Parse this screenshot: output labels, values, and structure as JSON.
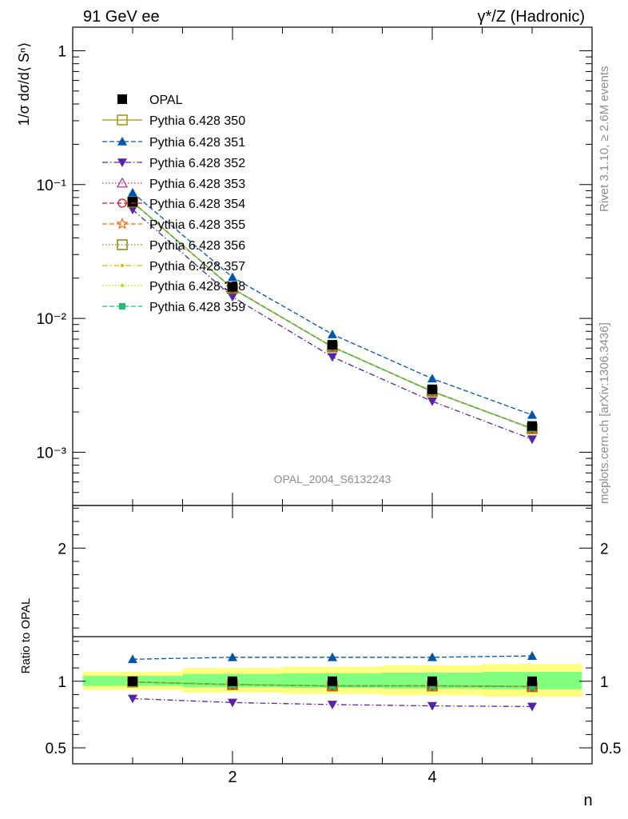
{
  "header": {
    "left_title": "91 GeV ee",
    "right_title": "γ*/Z (Hadronic)"
  },
  "side_text": {
    "rivet": "Rivet 3.1.10, ≥ 2.6M events",
    "mcplots": "mcplots.cern.ch [arXiv:1306.3436]"
  },
  "analysis_label": "OPAL_2004_S6132243",
  "chart_data": [
    {
      "type": "line",
      "panel": "main",
      "ylabel": "1/σ dσ/d⟨ Sⁿ⟩",
      "yscale": "log",
      "ylim": [
        0.0004,
        1.5
      ],
      "xlim": [
        0.4,
        5.6
      ],
      "y_tick_labels": [
        "1",
        "10⁻¹",
        "10⁻²",
        "10⁻³"
      ],
      "x": [
        1,
        2,
        3,
        4,
        5
      ],
      "series": [
        {
          "name": "OPAL",
          "color": "#000000",
          "marker": "filled-square",
          "line": "none",
          "values": [
            0.0745,
            0.0172,
            0.00635,
            0.00295,
            0.00157
          ]
        },
        {
          "name": "Pythia 6.428 350",
          "color": "#999900",
          "marker": "open-square",
          "line": "solid",
          "values": [
            0.074,
            0.0167,
            0.00612,
            0.00284,
            0.0015
          ]
        },
        {
          "name": "Pythia 6.428 351",
          "color": "#0055aa",
          "marker": "filled-triangle-up",
          "line": "dashed",
          "values": [
            0.087,
            0.0203,
            0.0076,
            0.00355,
            0.0019
          ]
        },
        {
          "name": "Pythia 6.428 352",
          "color": "#5522aa",
          "marker": "filled-triangle-down",
          "line": "dashdot",
          "values": [
            0.065,
            0.0145,
            0.00515,
            0.0024,
            0.00125
          ]
        },
        {
          "name": "Pythia 6.428 353",
          "color": "#bb2277",
          "marker": "open-triangle-up",
          "line": "dotted",
          "values": [
            0.0742,
            0.0168,
            0.00615,
            0.00286,
            0.00151
          ]
        },
        {
          "name": "Pythia 6.428 354",
          "color": "#dd1133",
          "marker": "open-circle",
          "line": "dashed",
          "values": [
            0.0741,
            0.0167,
            0.00613,
            0.00285,
            0.0015
          ]
        },
        {
          "name": "Pythia 6.428 355",
          "color": "#ff6600",
          "marker": "open-star",
          "line": "dashed",
          "values": [
            0.0742,
            0.0168,
            0.00614,
            0.00285,
            0.0015
          ]
        },
        {
          "name": "Pythia 6.428 356",
          "color": "#888800",
          "marker": "open-square",
          "line": "dotted",
          "values": [
            0.074,
            0.0167,
            0.00612,
            0.00284,
            0.0015
          ]
        },
        {
          "name": "Pythia 6.428 357",
          "color": "#ddbb00",
          "marker": "small-dot",
          "line": "dashdot",
          "values": [
            0.0741,
            0.0167,
            0.00613,
            0.00285,
            0.0015
          ]
        },
        {
          "name": "Pythia 6.428 358",
          "color": "#bbdd00",
          "marker": "small-dot",
          "line": "dotted",
          "values": [
            0.0741,
            0.0167,
            0.00613,
            0.00285,
            0.0015
          ]
        },
        {
          "name": "Pythia 6.428 359",
          "color": "#22bb77",
          "marker": "filled-square-small",
          "line": "dashed",
          "values": [
            0.074,
            0.0167,
            0.00612,
            0.00284,
            0.0015
          ]
        }
      ]
    },
    {
      "type": "line",
      "panel": "ratio",
      "ylabel": "Ratio to OPAL",
      "xlabel": "n",
      "ylim": [
        0.38,
        2.32
      ],
      "y_tick_labels": [
        "2",
        "1",
        "0.5"
      ],
      "x_tick_labels": [
        "2",
        "4"
      ],
      "x": [
        1,
        2,
        3,
        4,
        5
      ],
      "bands": {
        "bins": [
          [
            0.5,
            1.5
          ],
          [
            1.5,
            2.5
          ],
          [
            2.5,
            3.5
          ],
          [
            3.5,
            4.5
          ],
          [
            4.5,
            5.5
          ]
        ],
        "inner": [
          [
            0.965,
            1.04
          ],
          [
            0.955,
            1.055
          ],
          [
            0.95,
            1.06
          ],
          [
            0.945,
            1.065
          ],
          [
            0.94,
            1.07
          ]
        ],
        "outer": [
          [
            0.935,
            1.07
          ],
          [
            0.915,
            1.1
          ],
          [
            0.905,
            1.11
          ],
          [
            0.895,
            1.12
          ],
          [
            0.885,
            1.13
          ]
        ],
        "inner_color": "#80ff80",
        "outer_color": "#ffff80"
      },
      "series": [
        {
          "name": "Pythia 6.428 350",
          "color": "#999900",
          "values": [
            0.995,
            0.975,
            0.965,
            0.965,
            0.96
          ]
        },
        {
          "name": "Pythia 6.428 351",
          "color": "#0055aa",
          "values": [
            1.165,
            1.18,
            1.18,
            1.18,
            1.19
          ]
        },
        {
          "name": "Pythia 6.428 352",
          "color": "#5522aa",
          "values": [
            0.87,
            0.84,
            0.825,
            0.815,
            0.81
          ]
        },
        {
          "name": "Pythia 6.428 353",
          "color": "#bb2277",
          "values": [
            0.995,
            0.977,
            0.967,
            0.968,
            0.963
          ]
        },
        {
          "name": "Pythia 6.428 354",
          "color": "#dd1133",
          "values": [
            0.995,
            0.975,
            0.965,
            0.966,
            0.96
          ]
        },
        {
          "name": "Pythia 6.428 355",
          "color": "#ff6600",
          "values": [
            0.996,
            0.976,
            0.966,
            0.966,
            0.961
          ]
        },
        {
          "name": "Pythia 6.428 356",
          "color": "#888800",
          "values": [
            0.994,
            0.974,
            0.964,
            0.964,
            0.959
          ]
        },
        {
          "name": "Pythia 6.428 357",
          "color": "#ddbb00",
          "values": [
            0.995,
            0.975,
            0.965,
            0.965,
            0.96
          ]
        },
        {
          "name": "Pythia 6.428 358",
          "color": "#bbdd00",
          "values": [
            0.995,
            0.975,
            0.965,
            0.965,
            0.96
          ]
        },
        {
          "name": "Pythia 6.428 359",
          "color": "#22bb77",
          "values": [
            0.994,
            0.974,
            0.964,
            0.964,
            0.959
          ]
        }
      ]
    }
  ]
}
